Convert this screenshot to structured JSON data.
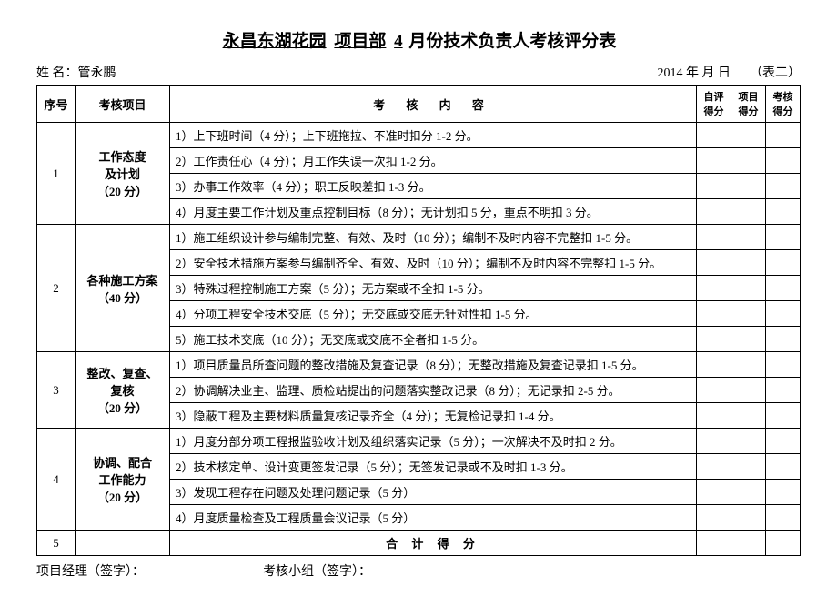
{
  "title": {
    "project": "永昌东湖花园",
    "dept": "项目部",
    "month": "4",
    "suffix": "月份技术负责人考核评分表"
  },
  "meta": {
    "name_label": "姓  名：",
    "name_value": "管永鹏",
    "date": "2014 年   月   日",
    "form_no": "（表二）"
  },
  "headers": {
    "seq": "序号",
    "item": "考核项目",
    "content": "考  核  内  容",
    "self": "自评得分",
    "proj": "项目得分",
    "check": "考核得分"
  },
  "sections": [
    {
      "seq": "1",
      "item_line1": "工作态度",
      "item_line2": "及计划",
      "item_line3": "（20 分）",
      "rows": [
        "1）上下班时间（4 分）；上下班拖拉、不准时扣分 1-2 分。",
        "2）工作责任心（4 分）；月工作失误一次扣 1-2 分。",
        "3）办事工作效率（4 分）；职工反映差扣 1-3 分。",
        "4）月度主要工作计划及重点控制目标（8 分）；无计划扣 5 分，重点不明扣 3 分。"
      ]
    },
    {
      "seq": "2",
      "item_line1": "各种施工方案",
      "item_line2": "（40 分）",
      "item_line3": "",
      "rows": [
        "1）施工组织设计参与编制完整、有效、及时（10 分）；编制不及时内容不完整扣 1-5 分。",
        "2）安全技术措施方案参与编制齐全、有效、及时（10 分）；编制不及时内容不完整扣 1-5 分。",
        "3）特殊过程控制施工方案（5 分）；无方案或不全扣 1-5 分。",
        "4）分项工程安全技术交底（5 分）；无交底或交底无针对性扣 1-5 分。",
        "5）施工技术交底（10 分）；无交底或交底不全者扣 1-5 分。"
      ]
    },
    {
      "seq": "3",
      "item_line1": "整改、复查、",
      "item_line2": "复核",
      "item_line3": "（20 分）",
      "rows": [
        "1）项目质量员所查问题的整改措施及复查记录（8 分）；无整改措施及复查记录扣 1-5 分。",
        "2）协调解决业主、监理、质检站提出的问题落实整改记录（8 分）；无记录扣 2-5 分。",
        "3）隐蔽工程及主要材料质量复核记录齐全（4 分）；无复检记录扣 1-4 分。"
      ]
    },
    {
      "seq": "4",
      "item_line1": "协调、配合",
      "item_line2": "工作能力",
      "item_line3": "（20 分）",
      "rows": [
        "1）月度分部分项工程报监验收计划及组织落实记录（5 分）；一次解决不及时扣 2 分。",
        "2）技术核定单、设计变更签发记录（5 分）；无签发记录或不及时扣 1-3 分。",
        "3）发现工程存在问题及处理问题记录（5 分）",
        "4）月度质量检查及工程质量会议记录（5 分）"
      ]
    }
  ],
  "total": {
    "seq": "5",
    "label": "合  计  得  分"
  },
  "footer": {
    "pm": "项目经理（签字）：",
    "team": "考核小组（签字）："
  }
}
